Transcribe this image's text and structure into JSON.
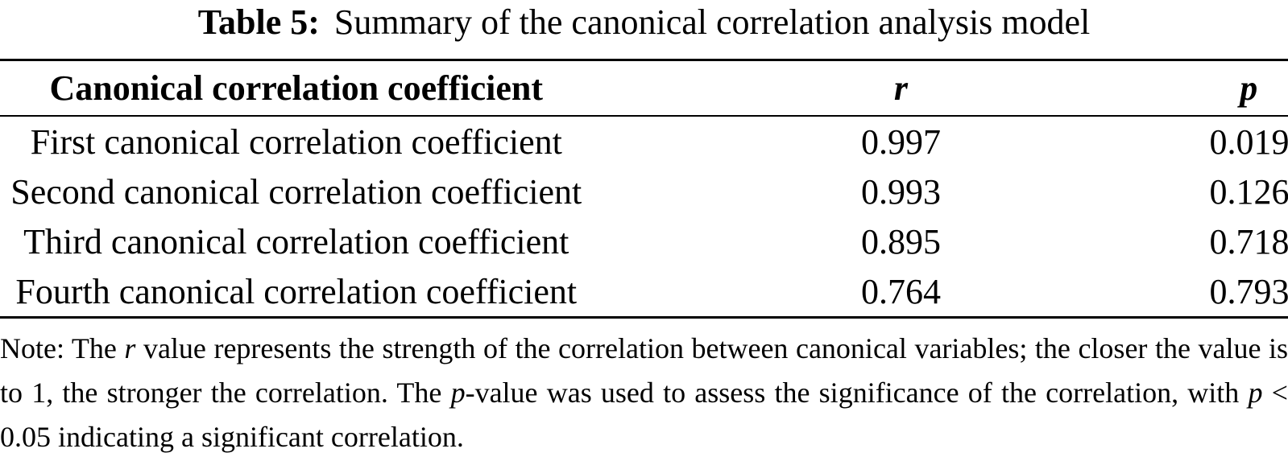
{
  "caption": {
    "label": "Table 5:",
    "text": "Summary of the canonical correlation analysis model"
  },
  "table": {
    "headers": [
      "Canonical correlation coefficient",
      "r",
      "p"
    ],
    "rows": [
      {
        "label": "First canonical correlation coefficient",
        "r": "0.997",
        "p": "0.019"
      },
      {
        "label": "Second canonical correlation coefficient",
        "r": "0.993",
        "p": "0.126"
      },
      {
        "label": "Third canonical correlation coefficient",
        "r": "0.895",
        "p": "0.718"
      },
      {
        "label": "Fourth canonical correlation coefficient",
        "r": "0.764",
        "p": "0.793"
      }
    ]
  },
  "note": {
    "segments": [
      {
        "text": "Note: The "
      },
      {
        "text": "r",
        "italic": true
      },
      {
        "text": " value represents the strength of the correlation between canonical variables; the closer the value is to 1, the stronger the correlation. The "
      },
      {
        "text": "p",
        "italic": true
      },
      {
        "text": "-value was used to assess the significance of the correlation, with "
      },
      {
        "text": "p",
        "italic": true
      },
      {
        "text": " < 0.05 indicating a significant correlation."
      }
    ]
  },
  "colors": {
    "text": "#000000",
    "background": "#ffffff",
    "rule": "#000000"
  }
}
